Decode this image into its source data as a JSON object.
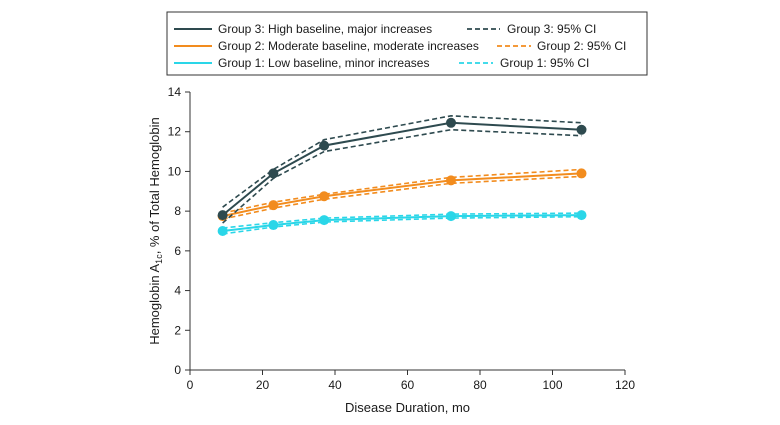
{
  "chart_data": {
    "type": "line",
    "xlabel": "Disease Duration, mo",
    "ylabel": {
      "prefix": "Hemoglobin A",
      "subscript": "1c",
      "suffix": ", % of Total Hemoglobin"
    },
    "xlim": [
      0,
      120
    ],
    "ylim": [
      0,
      14
    ],
    "xticks": [
      0,
      20,
      40,
      60,
      80,
      100,
      120
    ],
    "yticks": [
      0,
      2,
      4,
      6,
      8,
      10,
      12,
      14
    ],
    "grid": false,
    "legend_position": "top",
    "x": [
      9,
      23,
      37,
      72,
      108
    ],
    "series": [
      {
        "name": "Group 3: High baseline, major increases",
        "ci_name": "Group 3: 95% CI",
        "color": "#2e4a4f",
        "values": [
          7.8,
          9.9,
          11.3,
          12.45,
          12.1
        ],
        "ci_upper": [
          8.2,
          10.1,
          11.6,
          12.8,
          12.45
        ],
        "ci_lower": [
          7.4,
          9.65,
          11.0,
          12.1,
          11.8
        ]
      },
      {
        "name": "Group 2: Moderate baseline, moderate increases",
        "ci_name": "Group 2: 95% CI",
        "color": "#f28c1e",
        "values": [
          7.75,
          8.3,
          8.75,
          9.55,
          9.9
        ],
        "ci_upper": [
          7.9,
          8.45,
          8.85,
          9.7,
          10.1
        ],
        "ci_lower": [
          7.6,
          8.15,
          8.6,
          9.4,
          9.75
        ]
      },
      {
        "name": "Group 1: Low baseline, minor increases",
        "ci_name": "Group 1: 95% CI",
        "color": "#2ad6e8",
        "values": [
          7.0,
          7.3,
          7.55,
          7.75,
          7.8
        ],
        "ci_upper": [
          7.15,
          7.42,
          7.65,
          7.85,
          7.9
        ],
        "ci_lower": [
          6.85,
          7.2,
          7.45,
          7.65,
          7.72
        ]
      }
    ]
  }
}
